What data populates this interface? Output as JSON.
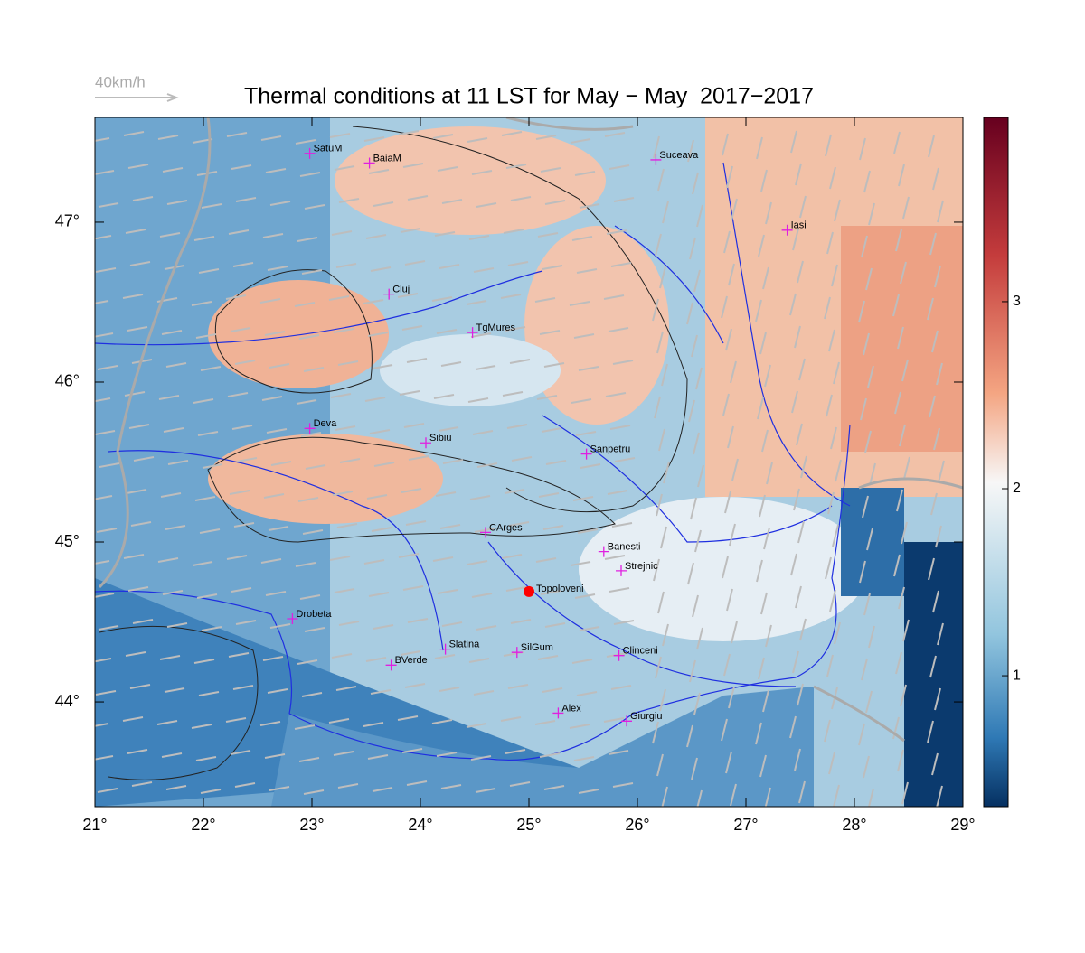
{
  "wind_scale": "40km/h",
  "title": "Thermal conditions at 11 LST for May − May  2017−2017",
  "map": {
    "xlim": [
      21,
      29
    ],
    "ylim": [
      43.345,
      47.655
    ],
    "xticks": [
      {
        "value": 21,
        "label": "21°"
      },
      {
        "value": 22,
        "label": "22°"
      },
      {
        "value": 23,
        "label": "23°"
      },
      {
        "value": 24,
        "label": "24°"
      },
      {
        "value": 25,
        "label": "25°"
      },
      {
        "value": 26,
        "label": "26°"
      },
      {
        "value": 27,
        "label": "27°"
      },
      {
        "value": 28,
        "label": "28°"
      },
      {
        "value": 29,
        "label": "29°"
      }
    ],
    "yticks": [
      {
        "value": 44,
        "label": "44°"
      },
      {
        "value": 45,
        "label": "45°"
      },
      {
        "value": 46,
        "label": "46°"
      },
      {
        "value": 47,
        "label": "47°"
      }
    ]
  },
  "colorbar": {
    "range": [
      0.3,
      3.985
    ],
    "ticks": [
      1,
      2,
      3
    ]
  },
  "places": [
    {
      "name": "SatuM",
      "lon": 22.98,
      "lat": 47.43
    },
    {
      "name": "BaiaM",
      "lon": 23.53,
      "lat": 47.37
    },
    {
      "name": "Suceava",
      "lon": 26.17,
      "lat": 47.39
    },
    {
      "name": "Iasi",
      "lon": 27.38,
      "lat": 46.95
    },
    {
      "name": "Cluj",
      "lon": 23.71,
      "lat": 46.55
    },
    {
      "name": "TgMures",
      "lon": 24.48,
      "lat": 46.31
    },
    {
      "name": "Deva",
      "lon": 22.98,
      "lat": 45.71
    },
    {
      "name": "Sibiu",
      "lon": 24.05,
      "lat": 45.62
    },
    {
      "name": "Sanpetru",
      "lon": 25.53,
      "lat": 45.55
    },
    {
      "name": "CArges",
      "lon": 24.6,
      "lat": 45.06
    },
    {
      "name": "Banesti",
      "lon": 25.69,
      "lat": 44.94
    },
    {
      "name": "Strejnic",
      "lon": 25.85,
      "lat": 44.82
    },
    {
      "name": "Drobeta",
      "lon": 22.82,
      "lat": 44.52
    },
    {
      "name": "Slatina",
      "lon": 24.23,
      "lat": 44.33
    },
    {
      "name": "SilGum",
      "lon": 24.89,
      "lat": 44.31
    },
    {
      "name": "BVerde",
      "lon": 23.73,
      "lat": 44.23
    },
    {
      "name": "Clinceni",
      "lon": 25.83,
      "lat": 44.29
    },
    {
      "name": "Alex",
      "lon": 25.27,
      "lat": 43.93
    },
    {
      "name": "Giurgiu",
      "lon": 25.9,
      "lat": 43.88
    }
  ],
  "marker": {
    "name": "Topoloveni",
    "lon": 25.0,
    "lat": 44.69
  }
}
